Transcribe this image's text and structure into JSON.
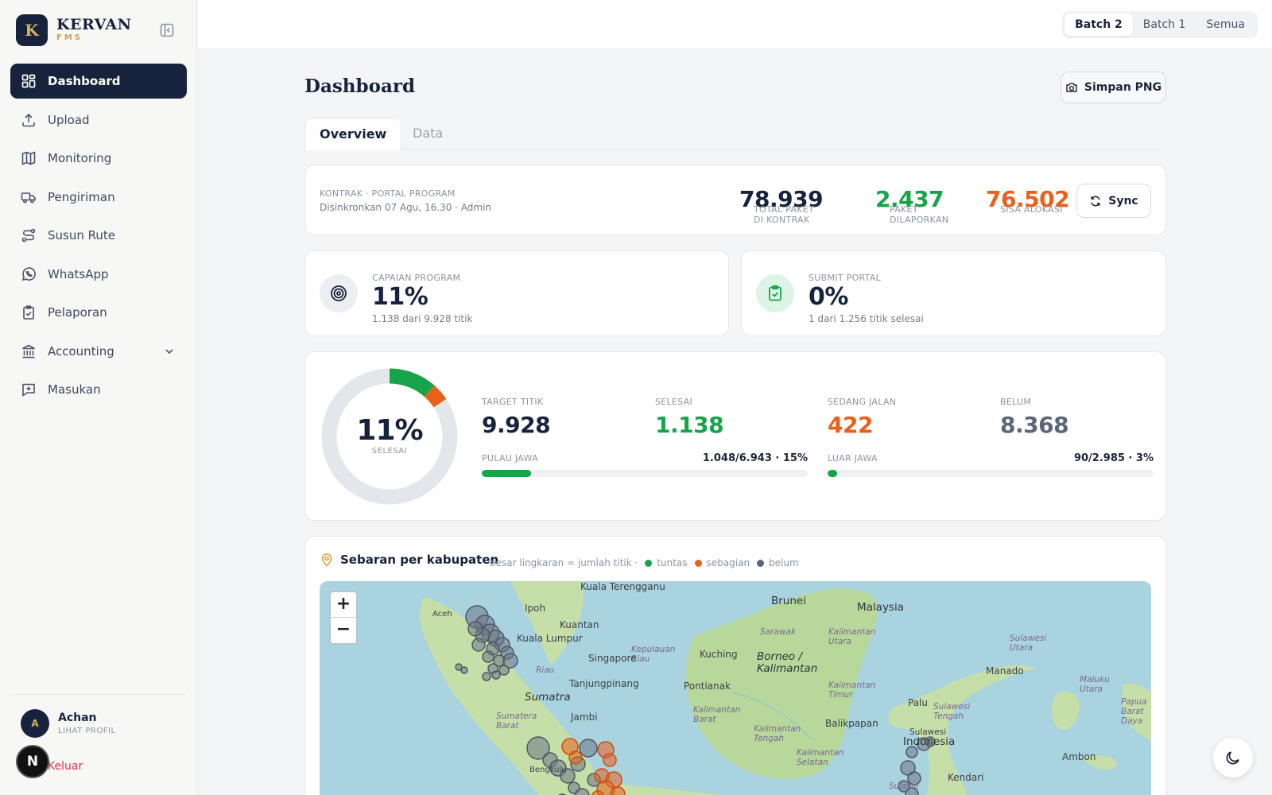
{
  "brand": {
    "initial": "K",
    "name": "KERVAN",
    "sub": "FMS"
  },
  "sidebar": {
    "items": [
      {
        "label": "Dashboard",
        "icon": "dashboard-icon"
      },
      {
        "label": "Upload",
        "icon": "upload-icon"
      },
      {
        "label": "Monitoring",
        "icon": "map-icon"
      },
      {
        "label": "Pengiriman",
        "icon": "truck-icon"
      },
      {
        "label": "Susun Rute",
        "icon": "route-icon"
      },
      {
        "label": "WhatsApp",
        "icon": "whatsapp-icon"
      },
      {
        "label": "Pelaporan",
        "icon": "clipboard-icon"
      },
      {
        "label": "Accounting",
        "icon": "bank-icon"
      },
      {
        "label": "Masukan",
        "icon": "feedback-icon"
      }
    ],
    "user": {
      "initial": "A",
      "name": "Achan",
      "link": "LIHAT PROFIL"
    },
    "logout": "Keluar",
    "badge": "N"
  },
  "topbar": {
    "batches": [
      "Batch 2",
      "Batch 1",
      "Semua"
    ],
    "active_batch": "Batch 2"
  },
  "page": {
    "title": "Dashboard",
    "save_png": "Simpan PNG",
    "tabs": [
      "Overview",
      "Data"
    ]
  },
  "contract": {
    "label": "KONTRAK · PORTAL PROGRAM",
    "synced": "Disinkronkan 07 Agu, 16.30 · Admin",
    "total_label": "TOTAL PAKET DI KONTRAK",
    "total_value": "78.939",
    "reported_label": "PAKET DILAPORKAN",
    "reported_value": "2.437",
    "remaining_label": "SISA ALOKASI",
    "remaining_value": "76.502",
    "sync": "Sync"
  },
  "capaian": {
    "label": "CAPAIAN PROGRAM",
    "value": "11%",
    "sub": "1.138 dari 9.928 titik"
  },
  "submit": {
    "label": "SUBMIT PORTAL",
    "value": "0%",
    "sub": "1 dari 1.256 titik selesai"
  },
  "progress": {
    "pct": "11%",
    "caption": "SELESAI",
    "done_fraction": 0.1146,
    "ongoing_fraction": 0.0425,
    "target_label": "TARGET TITIK",
    "target_value": "9.928",
    "done_label": "SELESAI",
    "done_value": "1.138",
    "ongoing_label": "SEDANG JALAN",
    "ongoing_value": "422",
    "pending_label": "BELUM",
    "pending_value": "8.368",
    "jawa_label": "PULAU JAWA",
    "jawa_value": "1.048/6.943 · 15%",
    "jawa_fraction": 0.15,
    "luar_label": "LUAR JAWA",
    "luar_value": "90/2.985 · 3%",
    "luar_fraction": 0.03
  },
  "map": {
    "title": "Sebaran per kabupaten",
    "legend_note": "besar lingkaran = jumlah titik ·",
    "legend": [
      "tuntas",
      "sebagian",
      "belum"
    ],
    "zoom_in": "+",
    "zoom_out": "−",
    "labels": {
      "kuala_terengganu": "Kuala Terengganu",
      "ipoh": "Ipoh",
      "aceh": "Aceh",
      "kuantan": "Kuantan",
      "kuala_lumpur": "Kuala Lumpur",
      "brunei": "Brunei",
      "malaysia": "Malaysia",
      "sarawak": "Sarawak",
      "kalimantan_utara": "Kalimantan Utara",
      "sulawesi_utara": "Sulawesi Utara",
      "kepulauan_riau": "Kepulauan Riau",
      "kuching": "Kuching",
      "borneo": "Borneo / Kalimantan",
      "singapore": "Singapore",
      "riau": "Riau",
      "manado": "Manado",
      "maluku_utara": "Maluku Utara",
      "tanjungpinang": "Tanjungpinang",
      "pontianak": "Pontianak",
      "kalimantan_timur": "Kalimantan Timur",
      "sumatra": "Sumatra",
      "palu": "Palu",
      "kalimantan_barat": "Kalimantan Barat",
      "sulawesi_tengah": "Sulawesi Tengah",
      "papua_barat_daya": "Papua Barat Daya",
      "jambi": "Jambi",
      "sumatera_barat": "Sumatera Barat",
      "balikpapan": "Balikpapan",
      "kalimantan_tengah": "Kalimantan Tengah",
      "sulawesi": "Sulawesi",
      "indonesia": "Indonesia",
      "kalimantan_selatan": "Kalimantan Selatan",
      "ambon": "Ambon",
      "kendari": "Kendari",
      "bengkulu": "Bengkulu",
      "sulawesi_bottom": "Sulawe"
    }
  },
  "colors": {
    "navy": "#17233c",
    "green": "#17a34a",
    "orange": "#e8601c",
    "slate": "#5c6678",
    "gold": "#c9a24c"
  }
}
